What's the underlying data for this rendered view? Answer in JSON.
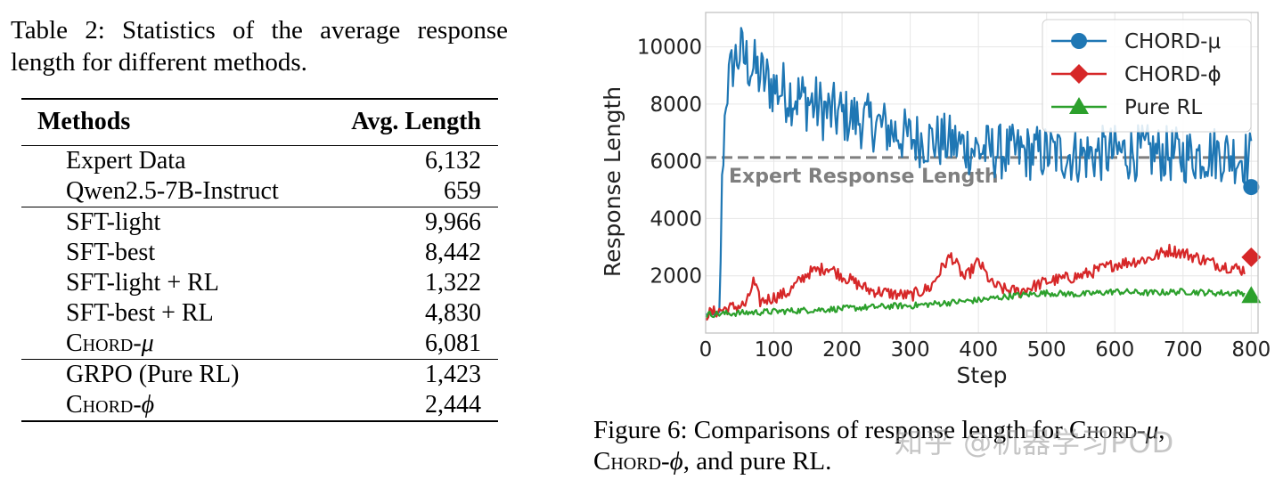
{
  "table": {
    "caption": {
      "line1": "Table 2:  Statistics of the average response",
      "line2": "length for different methods."
    },
    "headers": {
      "method": "Methods",
      "value": "Avg. Length"
    },
    "groups": [
      {
        "rows": [
          {
            "method": "Expert Data",
            "value": "6,132"
          },
          {
            "method": "Qwen2.5-7B-Instruct",
            "value": "659"
          }
        ]
      },
      {
        "rows": [
          {
            "method": "SFT-light",
            "value": "9,966"
          },
          {
            "method": "SFT-best",
            "value": "8,442"
          },
          {
            "method": "SFT-light + RL",
            "value": "1,322"
          },
          {
            "method": "SFT-best + RL",
            "value": "4,830"
          },
          {
            "method_sc": "Chord-",
            "method_sym": "μ",
            "value": "6,081"
          }
        ]
      },
      {
        "rows": [
          {
            "method": "GRPO (Pure RL)",
            "value": "1,423"
          },
          {
            "method_sc": "Chord-",
            "method_sym": "ϕ",
            "value": "2,444"
          }
        ]
      }
    ]
  },
  "chart_data": {
    "type": "line",
    "title": "",
    "xlabel": "Step",
    "ylabel": "Response Length",
    "xlim": [
      0,
      810
    ],
    "ylim": [
      0,
      11200
    ],
    "xticks": [
      "0",
      "100",
      "200",
      "300",
      "400",
      "500",
      "600",
      "700",
      "800"
    ],
    "yticks": [
      "2000",
      "4000",
      "6000",
      "8000",
      "10000"
    ],
    "grid": true,
    "legend_position": "top-right",
    "reference_line": {
      "value": 6132,
      "label": "Expert Response Length",
      "color": "#7f7f7f"
    },
    "series": [
      {
        "name": "CHORD-μ",
        "color": "#1f77b4",
        "marker": "circle",
        "final_marker_value": 5100,
        "x": [
          0,
          20,
          25,
          30,
          40,
          50,
          60,
          80,
          100,
          120,
          150,
          180,
          200,
          250,
          300,
          350,
          400,
          450,
          500,
          550,
          600,
          650,
          700,
          750,
          800
        ],
        "y": [
          650,
          700,
          6000,
          8400,
          9400,
          9800,
          9500,
          9000,
          8600,
          8400,
          8100,
          7700,
          7600,
          7300,
          6800,
          6700,
          6400,
          6300,
          6300,
          6200,
          6300,
          6300,
          6200,
          6300,
          6100
        ]
      },
      {
        "name": "CHORD-ϕ",
        "color": "#d62728",
        "marker": "diamond",
        "final_marker_value": 2650,
        "x": [
          0,
          30,
          60,
          70,
          80,
          120,
          150,
          180,
          200,
          240,
          280,
          300,
          330,
          350,
          360,
          380,
          400,
          420,
          440,
          460,
          500,
          550,
          600,
          650,
          680,
          700,
          750,
          790
        ],
        "y": [
          650,
          850,
          1000,
          1800,
          1100,
          1400,
          2100,
          2300,
          2000,
          1500,
          1350,
          1300,
          1600,
          2400,
          2700,
          1900,
          2500,
          1700,
          1500,
          1450,
          1800,
          2000,
          2400,
          2600,
          2900,
          2800,
          2400,
          2200
        ]
      },
      {
        "name": "Pure RL",
        "color": "#2ca02c",
        "marker": "triangle",
        "final_marker_value": 1300,
        "x": [
          0,
          100,
          200,
          280,
          300,
          400,
          450,
          500,
          550,
          600,
          650,
          700,
          750,
          790
        ],
        "y": [
          650,
          750,
          850,
          950,
          950,
          1150,
          1300,
          1400,
          1350,
          1450,
          1400,
          1450,
          1400,
          1400
        ]
      }
    ]
  },
  "figure": {
    "caption_line1_pre": "Figure 6:  Comparisons of response length for ",
    "caption_sc": "Chord-",
    "caption_sym_mu": "μ",
    "caption_sym_phi": "ϕ",
    "caption_tail": ", and pure RL.",
    "watermark": "知乎 @机器学习POD"
  }
}
